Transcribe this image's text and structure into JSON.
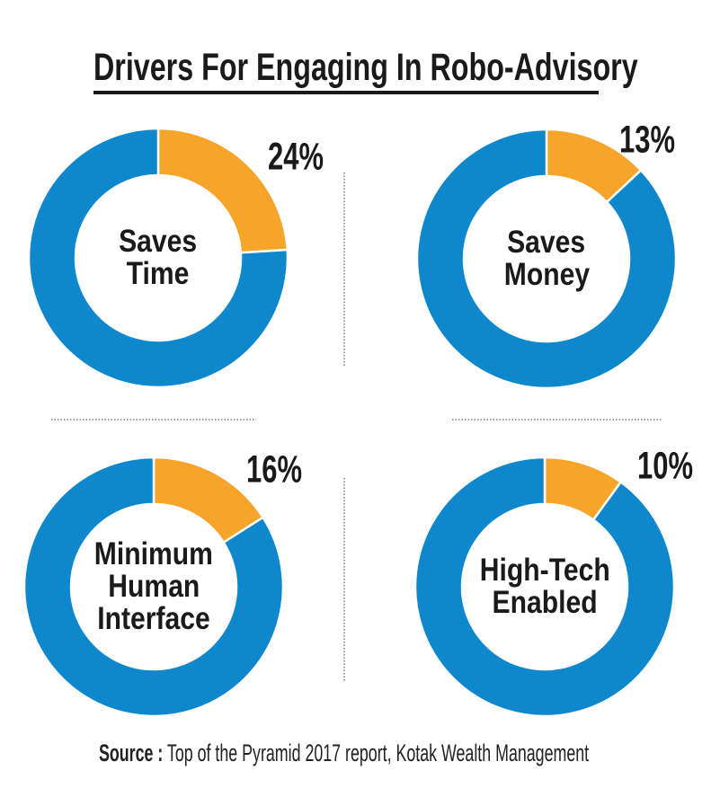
{
  "header": {
    "title": "Drivers For Engaging In Robo-Advisory"
  },
  "footer": {
    "source_prefix": "Source :",
    "source_text": "Top of the Pyramid 2017 report, Kotak Wealth Management"
  },
  "colors": {
    "text": "#1A1A1A",
    "underline": "#1A1A1A",
    "divider": "#9C9C9C",
    "background": "#FFFFFF"
  },
  "chart_data": {
    "type": "pie",
    "variant": "donut",
    "layout": "2x2-grid",
    "unit": "%",
    "donut_hole_ratio": 0.63,
    "slice_start": "12-oclock-clockwise",
    "title": "Drivers For Engaging In Robo-Advisory",
    "source": "Source : Top of the Pyramid 2017 report, Kotak Wealth Management",
    "colors": {
      "value_slice": "#F6A42A",
      "remainder_slice": "#0F87CC",
      "slice_gap": "#FFFFFF"
    },
    "series": [
      {
        "category": "Saves Time",
        "label_lines": [
          "Saves",
          "Time"
        ],
        "value": 24,
        "value_label": "24%",
        "remainder": 76
      },
      {
        "category": "Saves Money",
        "label_lines": [
          "Saves",
          "Money"
        ],
        "value": 13,
        "value_label": "13%",
        "remainder": 87
      },
      {
        "category": "Minimum Human Interface",
        "label_lines": [
          "Minimum",
          "Human",
          "Interface"
        ],
        "value": 16,
        "value_label": "16%",
        "remainder": 84
      },
      {
        "category": "High-Tech Enabled",
        "label_lines": [
          "High-Tech",
          "Enabled"
        ],
        "value": 10,
        "value_label": "10%",
        "remainder": 90
      }
    ]
  }
}
